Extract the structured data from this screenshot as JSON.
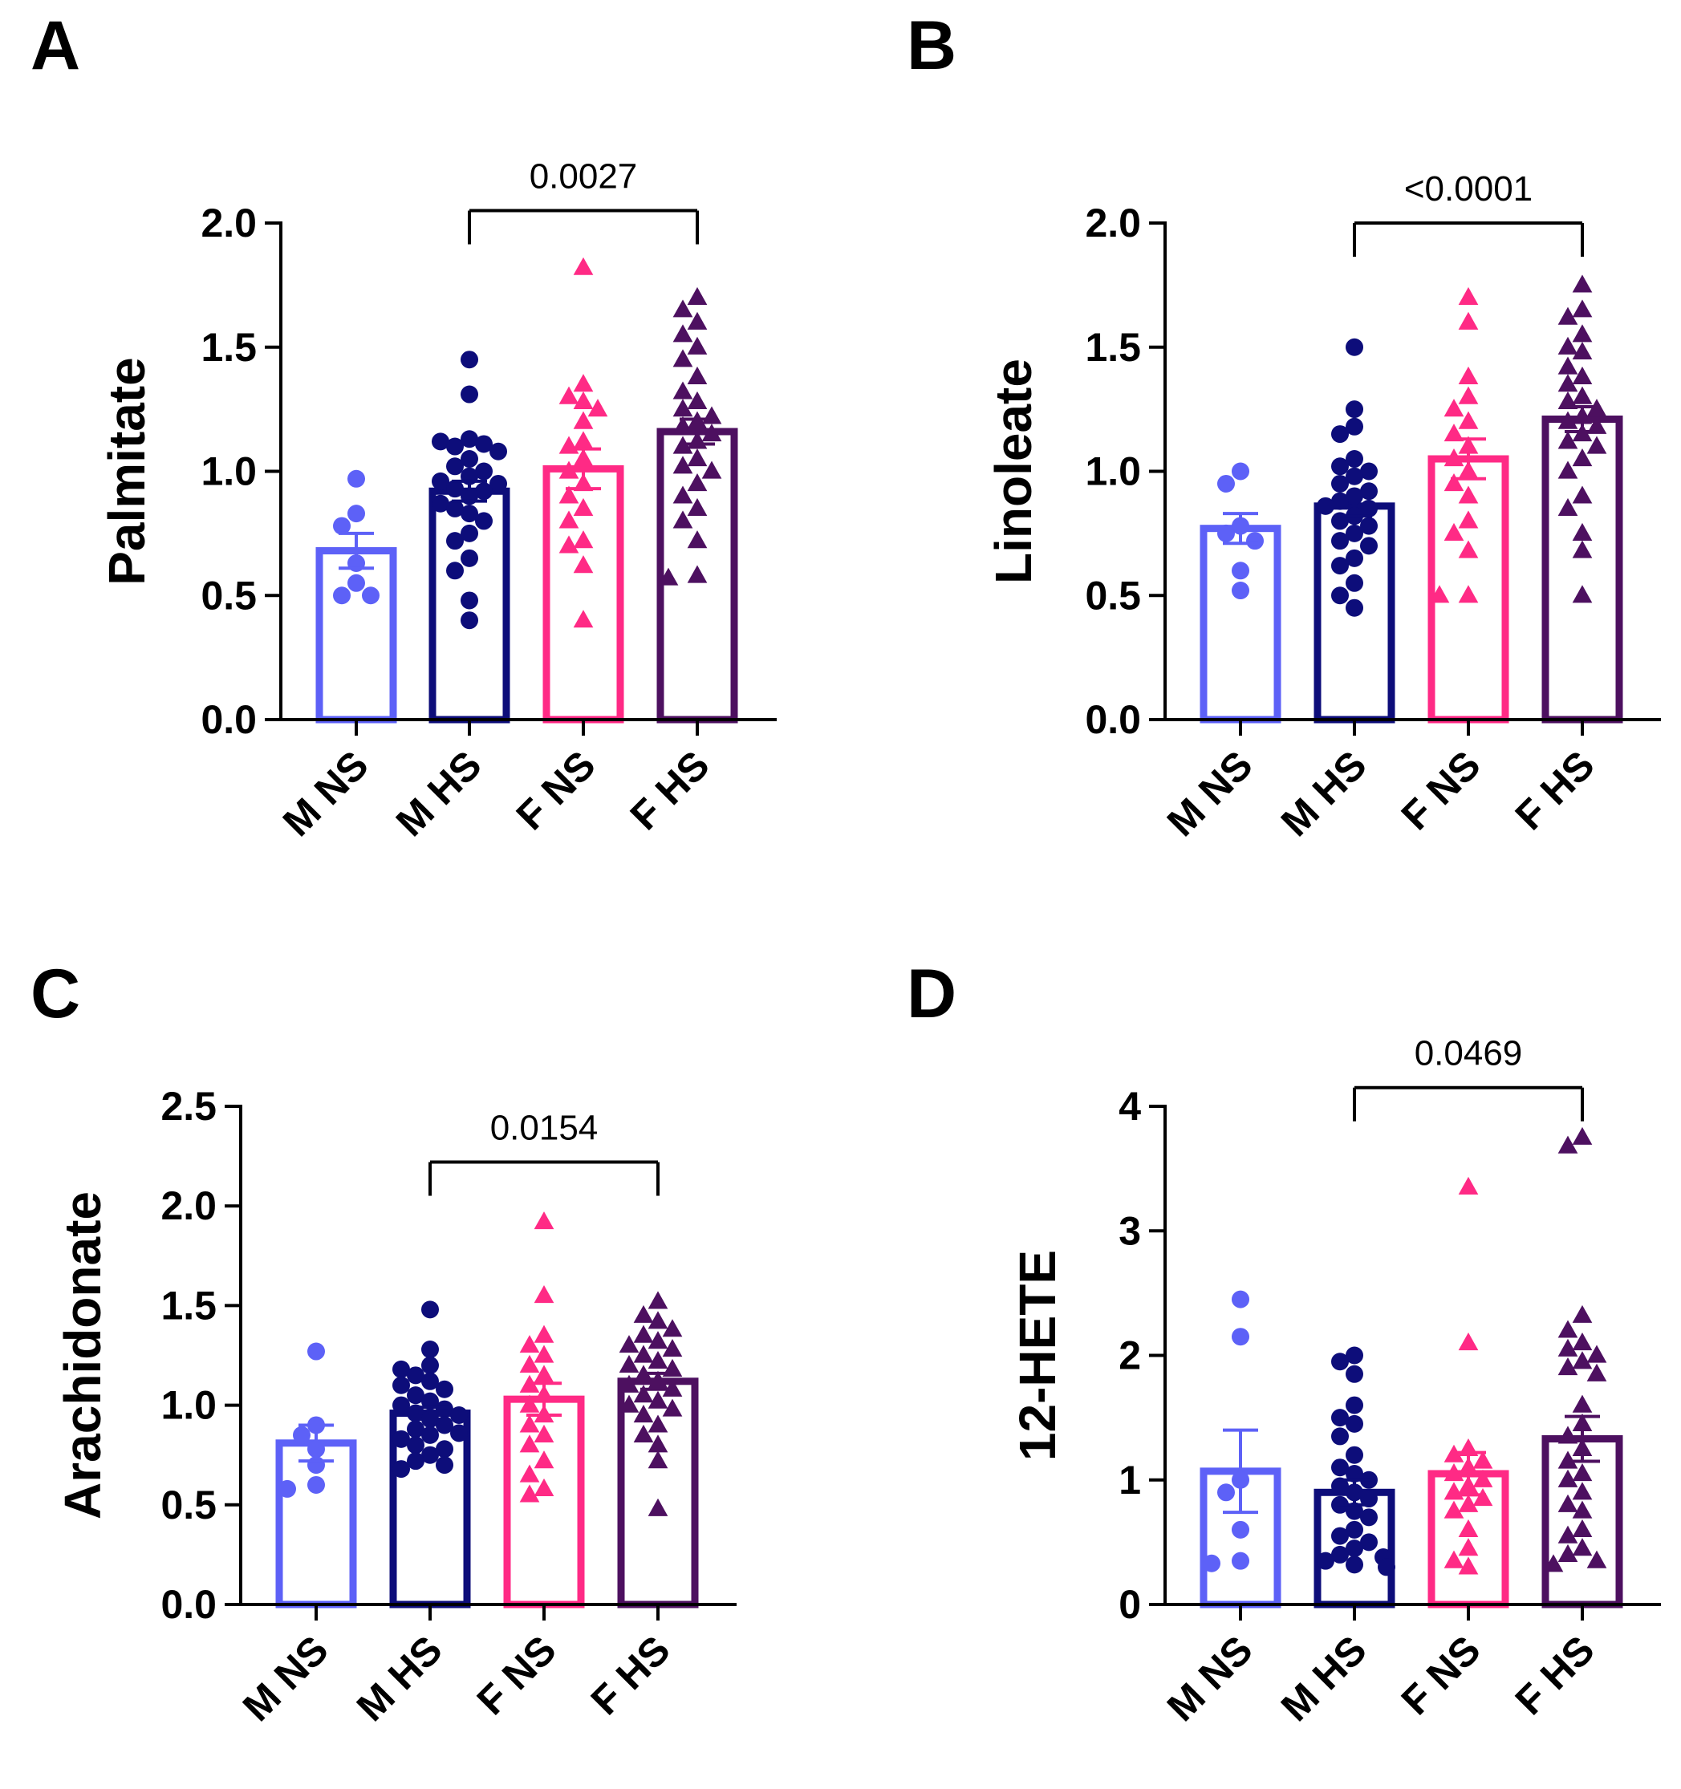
{
  "panels": [
    {
      "letter": "A"
    },
    {
      "letter": "B"
    },
    {
      "letter": "C"
    },
    {
      "letter": "D"
    }
  ],
  "colors": {
    "M NS": "#5d61f7",
    "M HS": "#0d0d7a",
    "F NS": "#ff2a85",
    "F HS": "#4d1060",
    "axis": "#000000"
  },
  "chart_data": [
    {
      "panel": "A",
      "type": "bar",
      "ylabel": "Palmitate",
      "categories": [
        "M NS",
        "M HS",
        "F NS",
        "F HS"
      ],
      "ylim": [
        0,
        2.0
      ],
      "yticks": [
        0.0,
        0.5,
        1.0,
        1.5,
        2.0
      ],
      "tick_labels": [
        "0.0",
        "0.5",
        "1.0",
        "1.5",
        "2.0"
      ],
      "series": [
        {
          "name": "M NS",
          "marker": "circle",
          "mean": 0.68,
          "sem": 0.07,
          "points": [
            0.97,
            0.83,
            0.78,
            0.63,
            0.55,
            0.5,
            0.5
          ]
        },
        {
          "name": "M HS",
          "marker": "circle",
          "mean": 0.92,
          "sem": 0.04,
          "points": [
            1.45,
            1.31,
            1.13,
            1.12,
            1.11,
            1.1,
            1.08,
            1.05,
            1.02,
            1.0,
            0.98,
            0.96,
            0.95,
            0.93,
            0.92,
            0.9,
            0.87,
            0.85,
            0.83,
            0.8,
            0.75,
            0.72,
            0.65,
            0.6,
            0.48,
            0.4
          ]
        },
        {
          "name": "F NS",
          "marker": "triangle",
          "mean": 1.01,
          "sem": 0.08,
          "points": [
            1.82,
            1.35,
            1.3,
            1.28,
            1.25,
            1.2,
            1.12,
            1.1,
            1.05,
            1.0,
            0.95,
            0.9,
            0.85,
            0.8,
            0.72,
            0.7,
            0.62,
            0.4
          ]
        },
        {
          "name": "F HS",
          "marker": "triangle",
          "mean": 1.16,
          "sem": 0.05,
          "points": [
            1.7,
            1.65,
            1.6,
            1.55,
            1.5,
            1.45,
            1.38,
            1.32,
            1.28,
            1.25,
            1.22,
            1.2,
            1.18,
            1.15,
            1.12,
            1.1,
            1.05,
            1.02,
            1.0,
            0.95,
            0.9,
            0.85,
            0.8,
            0.72,
            0.58,
            0.57
          ]
        }
      ],
      "comparison": {
        "from": "M HS",
        "to": "F HS",
        "label": "0.0027",
        "y": 2.05
      }
    },
    {
      "panel": "B",
      "type": "bar",
      "ylabel": "Linoleate",
      "categories": [
        "M NS",
        "M HS",
        "F NS",
        "F HS"
      ],
      "ylim": [
        0,
        2.0
      ],
      "yticks": [
        0.0,
        0.5,
        1.0,
        1.5,
        2.0
      ],
      "tick_labels": [
        "0.0",
        "0.5",
        "1.0",
        "1.5",
        "2.0"
      ],
      "series": [
        {
          "name": "M NS",
          "marker": "circle",
          "mean": 0.77,
          "sem": 0.06,
          "points": [
            1.0,
            0.95,
            0.78,
            0.75,
            0.72,
            0.6,
            0.52
          ]
        },
        {
          "name": "M HS",
          "marker": "circle",
          "mean": 0.86,
          "sem": 0.04,
          "points": [
            1.5,
            1.25,
            1.18,
            1.15,
            1.05,
            1.02,
            1.0,
            0.98,
            0.95,
            0.92,
            0.9,
            0.88,
            0.86,
            0.85,
            0.82,
            0.8,
            0.78,
            0.75,
            0.72,
            0.7,
            0.65,
            0.62,
            0.55,
            0.5,
            0.45
          ]
        },
        {
          "name": "F NS",
          "marker": "triangle",
          "mean": 1.05,
          "sem": 0.08,
          "points": [
            1.7,
            1.6,
            1.38,
            1.3,
            1.25,
            1.2,
            1.15,
            1.1,
            1.05,
            1.0,
            0.95,
            0.9,
            0.8,
            0.75,
            0.68,
            0.5,
            0.5
          ]
        },
        {
          "name": "F HS",
          "marker": "triangle",
          "mean": 1.21,
          "sem": 0.05,
          "points": [
            1.75,
            1.65,
            1.62,
            1.55,
            1.5,
            1.48,
            1.42,
            1.38,
            1.35,
            1.3,
            1.28,
            1.25,
            1.22,
            1.2,
            1.18,
            1.15,
            1.12,
            1.1,
            1.05,
            1.0,
            0.9,
            0.85,
            0.75,
            0.68,
            0.5
          ]
        }
      ],
      "comparison": {
        "from": "M HS",
        "to": "F HS",
        "label": "<0.0001",
        "y": 2.0
      }
    },
    {
      "panel": "C",
      "type": "bar",
      "ylabel": "Arachidonate",
      "categories": [
        "M NS",
        "M HS",
        "F NS",
        "F HS"
      ],
      "ylim": [
        0,
        2.5
      ],
      "yticks": [
        0.0,
        0.5,
        1.0,
        1.5,
        2.0,
        2.5
      ],
      "tick_labels": [
        "0.0",
        "0.5",
        "1.0",
        "1.5",
        "2.0",
        "2.5"
      ],
      "series": [
        {
          "name": "M NS",
          "marker": "circle",
          "mean": 0.81,
          "sem": 0.09,
          "points": [
            1.27,
            0.9,
            0.85,
            0.78,
            0.7,
            0.6,
            0.58
          ]
        },
        {
          "name": "M HS",
          "marker": "circle",
          "mean": 0.96,
          "sem": 0.03,
          "points": [
            1.48,
            1.28,
            1.2,
            1.18,
            1.15,
            1.12,
            1.1,
            1.08,
            1.05,
            1.02,
            1.0,
            0.98,
            0.96,
            0.95,
            0.93,
            0.9,
            0.88,
            0.86,
            0.85,
            0.83,
            0.8,
            0.78,
            0.75,
            0.72,
            0.7,
            0.68
          ]
        },
        {
          "name": "F NS",
          "marker": "triangle",
          "mean": 1.03,
          "sem": 0.08,
          "points": [
            1.92,
            1.55,
            1.35,
            1.3,
            1.25,
            1.2,
            1.15,
            1.1,
            1.05,
            1.0,
            0.95,
            0.9,
            0.85,
            0.8,
            0.72,
            0.65,
            0.58,
            0.55
          ]
        },
        {
          "name": "F HS",
          "marker": "triangle",
          "mean": 1.12,
          "sem": 0.04,
          "points": [
            1.52,
            1.45,
            1.42,
            1.38,
            1.35,
            1.32,
            1.3,
            1.28,
            1.25,
            1.22,
            1.2,
            1.18,
            1.15,
            1.12,
            1.1,
            1.08,
            1.05,
            1.02,
            1.0,
            0.98,
            0.95,
            0.9,
            0.85,
            0.8,
            0.72,
            0.48
          ]
        }
      ],
      "comparison": {
        "from": "M HS",
        "to": "F HS",
        "label": "0.0154",
        "y": 2.22
      }
    },
    {
      "panel": "D",
      "type": "bar",
      "ylabel": "12-HETE",
      "categories": [
        "M NS",
        "M HS",
        "F NS",
        "F HS"
      ],
      "ylim": [
        0,
        4
      ],
      "yticks": [
        0,
        1,
        2,
        3,
        4
      ],
      "tick_labels": [
        "0",
        "1",
        "2",
        "3",
        "4"
      ],
      "series": [
        {
          "name": "M NS",
          "marker": "circle",
          "mean": 1.07,
          "sem": 0.33,
          "points": [
            2.45,
            2.15,
            1.0,
            0.9,
            0.6,
            0.35,
            0.33
          ]
        },
        {
          "name": "M HS",
          "marker": "circle",
          "mean": 0.9,
          "sem": 0.1,
          "points": [
            2.0,
            1.95,
            1.85,
            1.6,
            1.5,
            1.45,
            1.35,
            1.2,
            1.1,
            1.05,
            1.0,
            0.95,
            0.9,
            0.85,
            0.8,
            0.75,
            0.7,
            0.6,
            0.55,
            0.5,
            0.45,
            0.4,
            0.38,
            0.35,
            0.32,
            0.3
          ]
        },
        {
          "name": "F NS",
          "marker": "triangle",
          "mean": 1.05,
          "sem": 0.17,
          "points": [
            3.35,
            2.1,
            1.25,
            1.2,
            1.15,
            1.1,
            1.05,
            1.0,
            0.95,
            0.9,
            0.85,
            0.8,
            0.75,
            0.6,
            0.45,
            0.35,
            0.3
          ]
        },
        {
          "name": "F HS",
          "marker": "triangle",
          "mean": 1.33,
          "sem": 0.18,
          "points": [
            3.75,
            3.68,
            2.32,
            2.2,
            2.1,
            2.05,
            2.0,
            1.95,
            1.9,
            1.85,
            1.6,
            1.45,
            1.35,
            1.25,
            1.15,
            1.05,
            1.0,
            0.9,
            0.8,
            0.75,
            0.6,
            0.55,
            0.45,
            0.4,
            0.35,
            0.32
          ]
        }
      ],
      "comparison": {
        "from": "M HS",
        "to": "F HS",
        "label": "0.0469",
        "y": 4.15
      }
    }
  ]
}
